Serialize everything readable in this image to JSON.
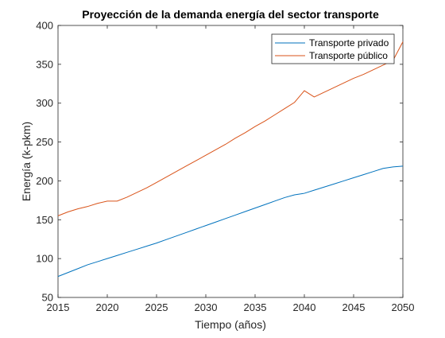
{
  "chart_data": {
    "type": "line",
    "title": "Proyección de la demanda energía del sector transporte",
    "xlabel": "Tiempo (años)",
    "ylabel": "Energía (k-pkm)",
    "xlim": [
      2015,
      2050
    ],
    "ylim": [
      50,
      400
    ],
    "xticks": [
      "2015",
      "2020",
      "2025",
      "2030",
      "2035",
      "2040",
      "2045",
      "2050"
    ],
    "yticks": [
      "50",
      "100",
      "150",
      "200",
      "250",
      "300",
      "350",
      "400"
    ],
    "grid": false,
    "legend_position": "top-right",
    "series": [
      {
        "name": "Transporte privado",
        "color": "#0072BD",
        "x": [
          2015,
          2016,
          2017,
          2018,
          2019,
          2020,
          2021,
          2022,
          2023,
          2024,
          2025,
          2026,
          2027,
          2028,
          2029,
          2030,
          2031,
          2032,
          2033,
          2034,
          2035,
          2036,
          2037,
          2038,
          2039,
          2040,
          2041,
          2042,
          2043,
          2044,
          2045,
          2046,
          2047,
          2048,
          2049,
          2050
        ],
        "values": [
          77,
          82,
          87,
          92,
          96,
          100,
          104,
          108,
          112,
          116,
          120,
          124.5,
          129,
          133.5,
          138,
          142.5,
          147,
          151.5,
          156,
          160.5,
          165,
          169.5,
          174,
          178.5,
          182,
          184,
          188,
          192,
          196,
          200,
          204,
          208,
          212,
          216,
          218,
          219
        ]
      },
      {
        "name": "Transporte público",
        "color": "#D95319",
        "x": [
          2015,
          2016,
          2017,
          2018,
          2019,
          2020,
          2021,
          2022,
          2023,
          2024,
          2025,
          2026,
          2027,
          2028,
          2029,
          2030,
          2031,
          2032,
          2033,
          2034,
          2035,
          2036,
          2037,
          2038,
          2039,
          2040,
          2041,
          2042,
          2043,
          2044,
          2045,
          2046,
          2047,
          2048,
          2049,
          2050
        ],
        "values": [
          155,
          160,
          164,
          167,
          171,
          174,
          174,
          179,
          185,
          191,
          198,
          205,
          212,
          219,
          226,
          233,
          240,
          247,
          255,
          262,
          270,
          277,
          285,
          293,
          301,
          316,
          308,
          314,
          320,
          326,
          332,
          337,
          343,
          349,
          355,
          379
        ]
      }
    ]
  }
}
